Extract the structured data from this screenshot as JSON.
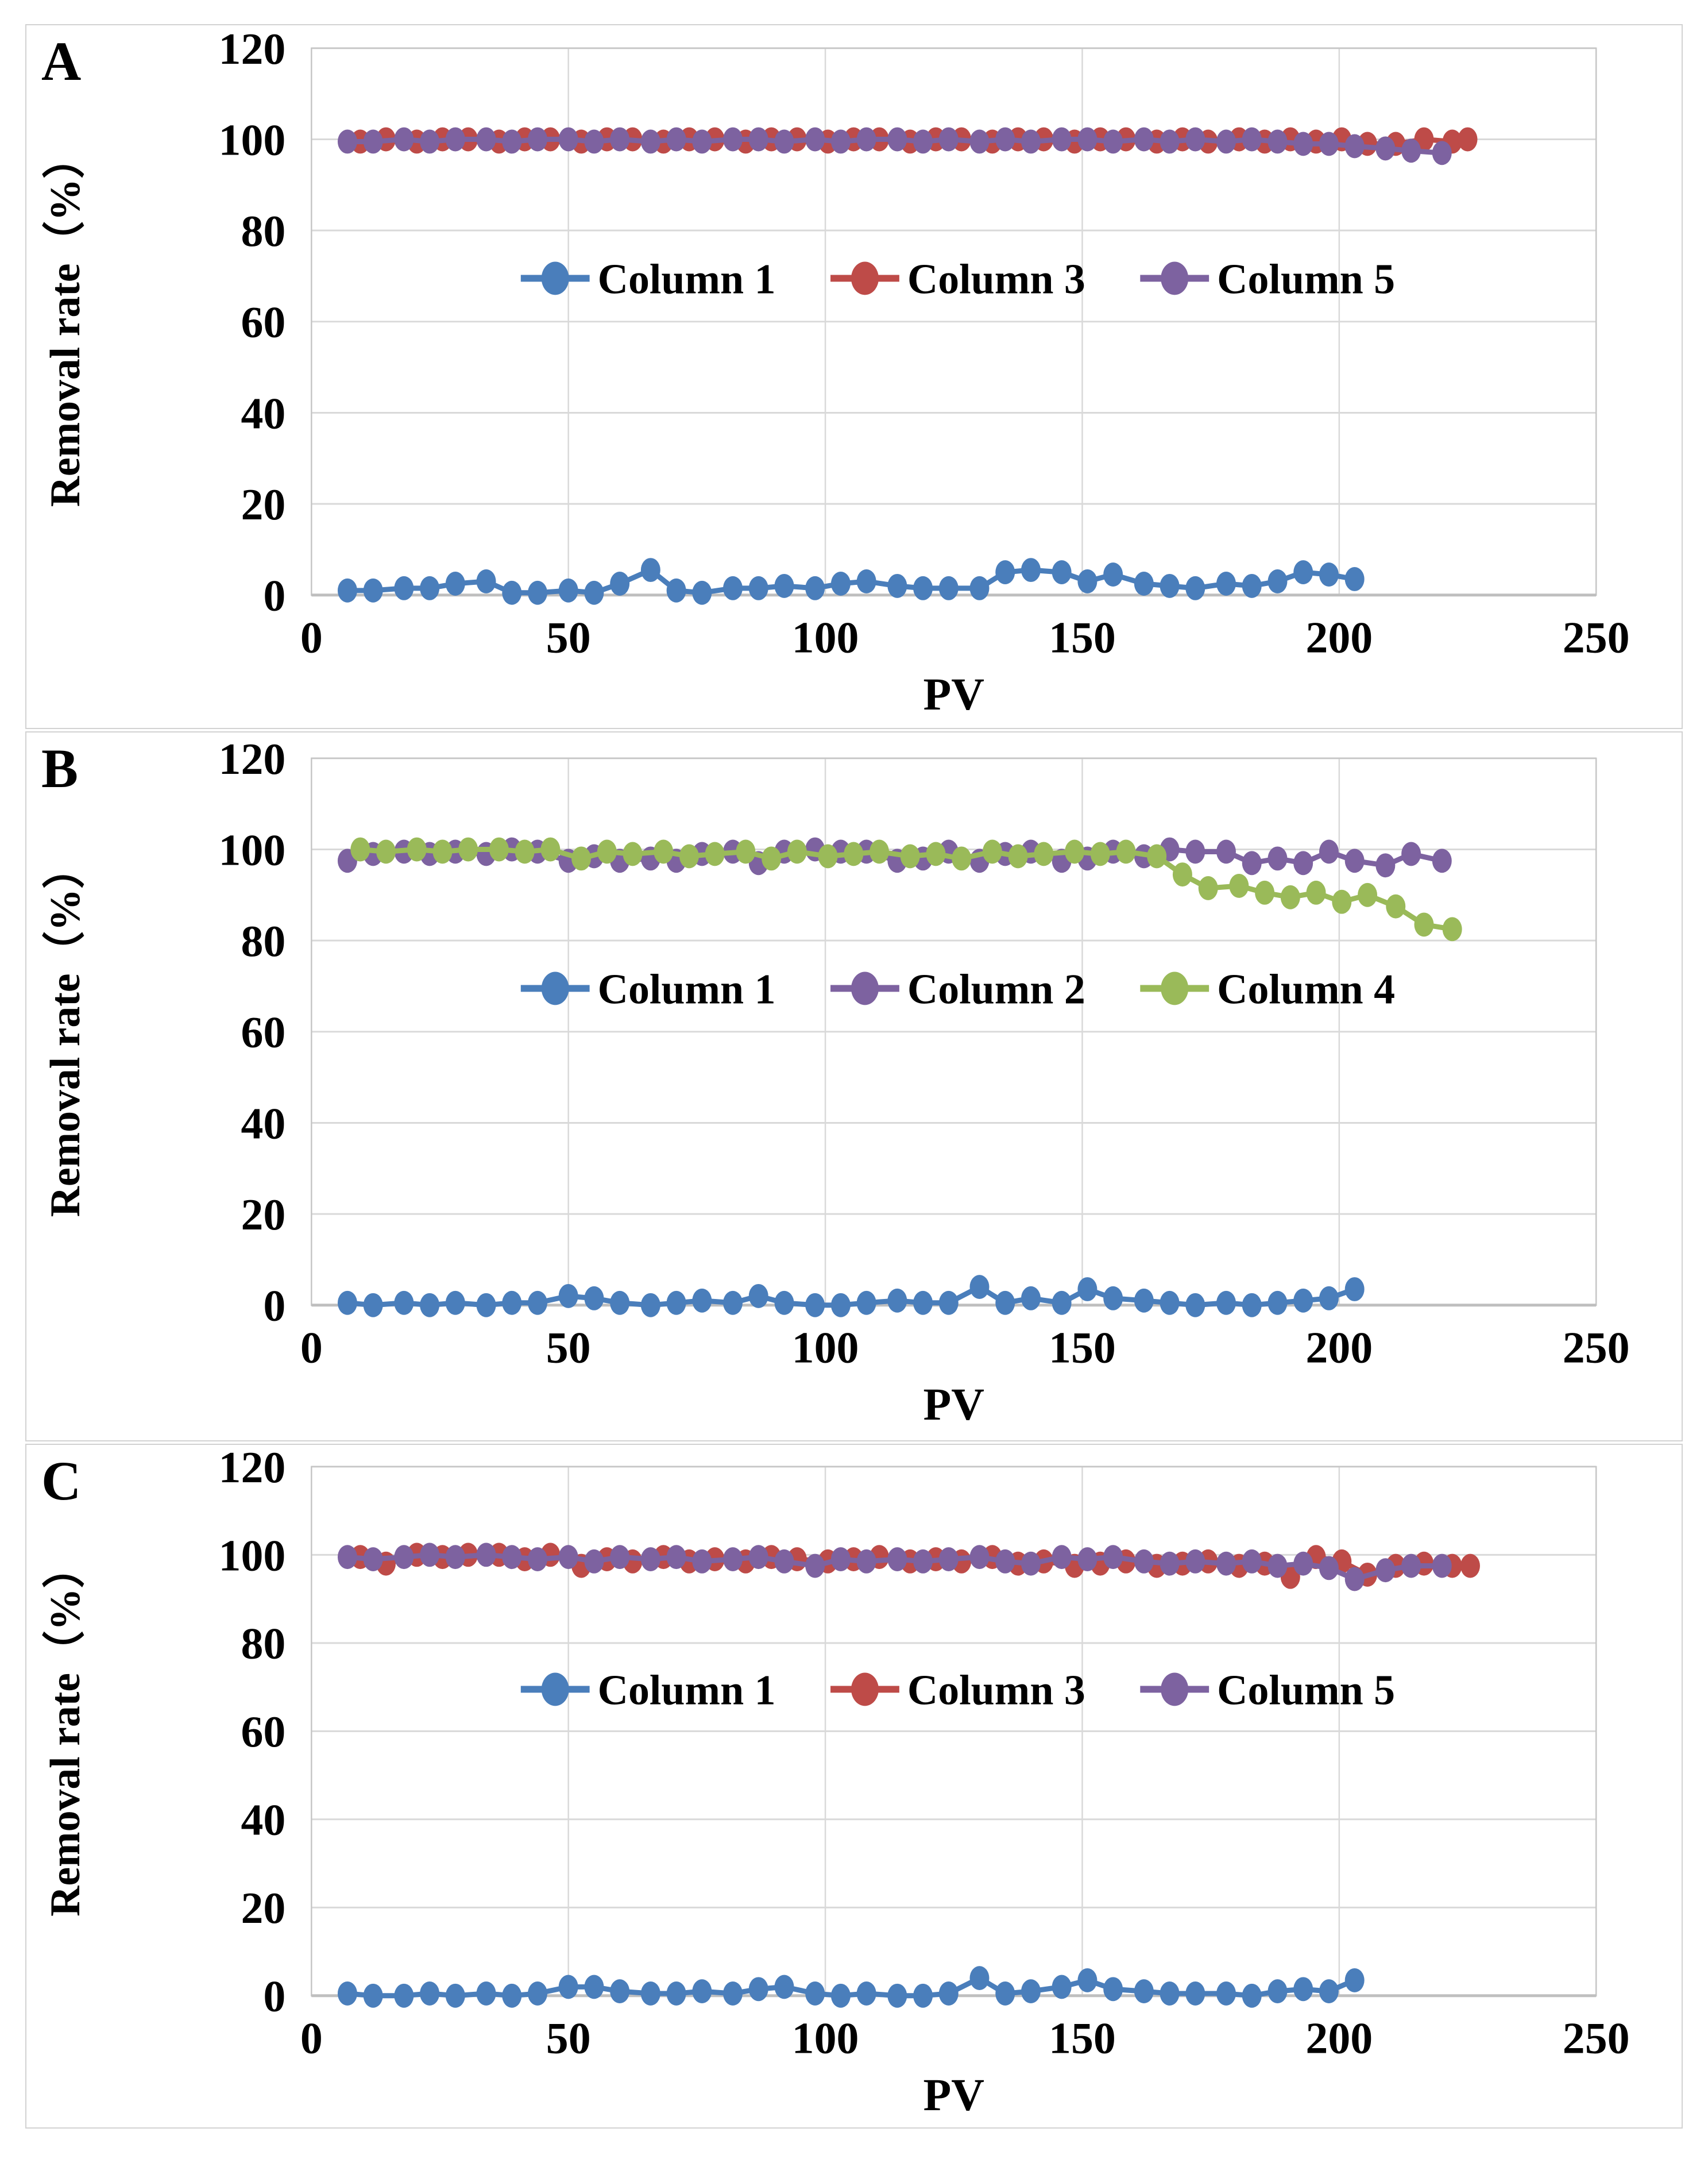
{
  "figure": {
    "background": "#ffffff",
    "panel_border_color": "#d2d2d2",
    "grid_color": "#d9d9d9",
    "plot_border_color": "#c6c6c6",
    "axis_line_color": "#bfbfbf",
    "text_color": "#000000"
  },
  "chart_data": [
    {
      "type": "line",
      "panel_label": "A",
      "xlabel": "PV",
      "ylabel": "Removal rate（%）",
      "xlim": [
        0,
        250
      ],
      "ylim": [
        0,
        120
      ],
      "x_ticks": [
        0,
        50,
        100,
        150,
        200,
        250
      ],
      "y_ticks": [
        0,
        20,
        40,
        60,
        80,
        100,
        120
      ],
      "grid": true,
      "legend_position": "inside-center",
      "legend_value_y": 69.5,
      "series": [
        {
          "name": "Column 1",
          "color": "#4a7ebb",
          "x": [
            7,
            12,
            18,
            23,
            28,
            34,
            39,
            44,
            50,
            55,
            60,
            66,
            71,
            76,
            82,
            87,
            92,
            98,
            103,
            108,
            114,
            119,
            124,
            130,
            135,
            140,
            146,
            151,
            156,
            162,
            167,
            172,
            178,
            183,
            188,
            193,
            198,
            203
          ],
          "y": [
            1,
            1,
            1.5,
            1.5,
            2.5,
            3,
            0.5,
            0.5,
            1,
            0.5,
            2.5,
            5.5,
            1,
            0.5,
            1.5,
            1.5,
            2,
            1.5,
            2.5,
            3,
            2,
            1.5,
            1.5,
            1.5,
            5,
            5.5,
            5,
            3,
            4.5,
            2.5,
            2,
            1.5,
            2.5,
            2,
            3,
            5,
            4.5,
            3.5
          ]
        },
        {
          "name": "Column 3",
          "color": "#be4b48",
          "x": [
            9.5,
            14.5,
            20.5,
            25.5,
            30.5,
            36.5,
            41.5,
            46.5,
            52.5,
            57.5,
            62.5,
            68.5,
            73.5,
            78.5,
            84.5,
            89.5,
            94.5,
            100.5,
            105.5,
            110.5,
            116.5,
            121.5,
            126.5,
            132.5,
            137.5,
            142.5,
            148.5,
            153.5,
            158.5,
            164.5,
            169.5,
            174.5,
            180.5,
            185.5,
            190.5,
            195.5,
            200.5,
            205.5,
            211,
            216.5,
            222,
            225
          ],
          "y": [
            99.5,
            100,
            99.5,
            100,
            100,
            99.5,
            100,
            100,
            99.5,
            100,
            100,
            99.5,
            100,
            100,
            99.5,
            100,
            100,
            99.5,
            100,
            100,
            99.5,
            100,
            100,
            99.5,
            100,
            100,
            99.5,
            100,
            100,
            99.5,
            100,
            99.5,
            100,
            99.5,
            100,
            99.5,
            100,
            99,
            99,
            100,
            99.5,
            100
          ]
        },
        {
          "name": "Column 5",
          "color": "#7d62a0",
          "x": [
            7,
            12,
            18,
            23,
            28,
            34,
            39,
            44,
            50,
            55,
            60,
            66,
            71,
            76,
            82,
            87,
            92,
            98,
            103,
            108,
            114,
            119,
            124,
            130,
            135,
            140,
            146,
            151,
            156,
            162,
            167,
            172,
            178,
            183,
            188,
            193,
            198,
            203,
            209,
            214,
            220
          ],
          "y": [
            99.5,
            99.5,
            100,
            99.5,
            100,
            100,
            99.5,
            100,
            100,
            99.5,
            100,
            99.5,
            100,
            99.5,
            100,
            100,
            99.5,
            100,
            99.5,
            100,
            100,
            99.5,
            100,
            99.5,
            100,
            99.5,
            100,
            100,
            99.5,
            100,
            99.5,
            100,
            99.5,
            100,
            99.5,
            99,
            99,
            98.5,
            98,
            97.5,
            97
          ]
        }
      ]
    },
    {
      "type": "line",
      "panel_label": "B",
      "xlabel": "PV",
      "ylabel": "Removal rate（%）",
      "xlim": [
        0,
        250
      ],
      "ylim": [
        0,
        120
      ],
      "x_ticks": [
        0,
        50,
        100,
        150,
        200,
        250
      ],
      "y_ticks": [
        0,
        20,
        40,
        60,
        80,
        100,
        120
      ],
      "grid": true,
      "legend_position": "inside-center",
      "legend_value_y": 69.5,
      "series": [
        {
          "name": "Column 1",
          "color": "#4a7ebb",
          "x": [
            7,
            12,
            18,
            23,
            28,
            34,
            39,
            44,
            50,
            55,
            60,
            66,
            71,
            76,
            82,
            87,
            92,
            98,
            103,
            108,
            114,
            119,
            124,
            130,
            135,
            140,
            146,
            151,
            156,
            162,
            167,
            172,
            178,
            183,
            188,
            193,
            198,
            203
          ],
          "y": [
            0.5,
            0,
            0.5,
            0,
            0.5,
            0,
            0.5,
            0.5,
            2,
            1.5,
            0.5,
            0,
            0.5,
            1,
            0.5,
            2,
            0.5,
            0,
            0,
            0.5,
            1,
            0.5,
            0.5,
            4,
            0.5,
            1.5,
            0.5,
            3.5,
            1.5,
            1,
            0.5,
            0,
            0.5,
            0,
            0.5,
            1,
            1.5,
            3.5
          ]
        },
        {
          "name": "Column 2",
          "color": "#7d62a0",
          "x": [
            7,
            12,
            18,
            23,
            28,
            34,
            39,
            44,
            50,
            55,
            60,
            66,
            71,
            76,
            82,
            87,
            92,
            98,
            103,
            108,
            114,
            119,
            124,
            130,
            135,
            140,
            146,
            151,
            156,
            162,
            167,
            172,
            178,
            183,
            188,
            193,
            198,
            203,
            209,
            214,
            220
          ],
          "y": [
            97.5,
            99,
            99.5,
            99,
            99.5,
            99,
            100,
            99.5,
            97.5,
            98.5,
            97.5,
            98,
            97.5,
            99,
            99.5,
            97,
            99.5,
            100,
            99.5,
            99.5,
            97.5,
            98,
            99.5,
            97.5,
            99,
            99.5,
            97.5,
            98,
            99.5,
            98.5,
            100,
            99.5,
            99.5,
            97,
            98,
            97,
            99.5,
            97.5,
            96.5,
            99,
            97.5
          ]
        },
        {
          "name": "Column 4",
          "color": "#9aba59",
          "x": [
            9.5,
            14.5,
            20.5,
            25.5,
            30.5,
            36.5,
            41.5,
            46.5,
            52.5,
            57.5,
            62.5,
            68.5,
            73.5,
            78.5,
            84.5,
            89.5,
            94.5,
            100.5,
            105.5,
            110.5,
            116.5,
            121.5,
            126.5,
            132.5,
            137.5,
            142.5,
            148.5,
            153.5,
            158.5,
            164.5,
            169.5,
            174.5,
            180.5,
            185.5,
            190.5,
            195.5,
            200.5,
            205.5,
            211,
            216.5,
            222
          ],
          "y": [
            100,
            99.5,
            100,
            99.5,
            100,
            100,
            99.5,
            100,
            98,
            99.5,
            99,
            99.5,
            98.5,
            99,
            99.5,
            98,
            99.5,
            98.5,
            99,
            99.5,
            98.5,
            99,
            98,
            99.5,
            98.5,
            99,
            99.5,
            99,
            99.5,
            98.5,
            94.5,
            91.5,
            92,
            90.5,
            89.5,
            90.5,
            88.5,
            90,
            87.5,
            83.5,
            82.5
          ]
        }
      ]
    },
    {
      "type": "line",
      "panel_label": "C",
      "xlabel": "PV",
      "ylabel": "Removal rate（%）",
      "xlim": [
        0,
        250
      ],
      "ylim": [
        0,
        120
      ],
      "x_ticks": [
        0,
        50,
        100,
        150,
        200,
        250
      ],
      "y_ticks": [
        0,
        20,
        40,
        60,
        80,
        100,
        120
      ],
      "grid": true,
      "legend_position": "inside-center",
      "legend_value_y": 69.5,
      "series": [
        {
          "name": "Column 1",
          "color": "#4a7ebb",
          "x": [
            7,
            12,
            18,
            23,
            28,
            34,
            39,
            44,
            50,
            55,
            60,
            66,
            71,
            76,
            82,
            87,
            92,
            98,
            103,
            108,
            114,
            119,
            124,
            130,
            135,
            140,
            146,
            151,
            156,
            162,
            167,
            172,
            178,
            183,
            188,
            193,
            198,
            203
          ],
          "y": [
            0.5,
            0,
            0,
            0.5,
            0,
            0.5,
            0,
            0.5,
            2,
            2,
            1,
            0.5,
            0.5,
            1,
            0.5,
            1.5,
            2,
            0.5,
            0,
            0.5,
            0,
            0,
            0.5,
            4,
            0.5,
            1,
            2,
            3.5,
            1.5,
            1,
            0.5,
            0.5,
            0.5,
            0,
            1,
            1.5,
            1,
            3.5
          ]
        },
        {
          "name": "Column 3",
          "color": "#be4b48",
          "x": [
            9.5,
            14.5,
            20.5,
            25.5,
            30.5,
            36.5,
            41.5,
            46.5,
            52.5,
            57.5,
            62.5,
            68.5,
            73.5,
            78.5,
            84.5,
            89.5,
            94.5,
            100.5,
            105.5,
            110.5,
            116.5,
            121.5,
            126.5,
            132.5,
            137.5,
            142.5,
            148.5,
            153.5,
            158.5,
            164.5,
            169.5,
            174.5,
            180.5,
            185.5,
            190.5,
            195.5,
            200.5,
            205.5,
            211,
            216.5,
            222,
            225.5
          ],
          "y": [
            99.5,
            98,
            100,
            99.5,
            100,
            100,
            99,
            100,
            97.5,
            99,
            98.5,
            99.5,
            98.5,
            99,
            98.5,
            99.5,
            99,
            98.5,
            99,
            99.5,
            98.5,
            99,
            98.5,
            99.5,
            98,
            98.5,
            97.5,
            98,
            98.5,
            97.5,
            98,
            98.5,
            97.5,
            98,
            95,
            99.5,
            98.5,
            95.5,
            97.5,
            98,
            97.5,
            97.5
          ]
        },
        {
          "name": "Column 5",
          "color": "#7d62a0",
          "x": [
            7,
            12,
            18,
            23,
            28,
            34,
            39,
            44,
            50,
            55,
            60,
            66,
            71,
            76,
            82,
            87,
            92,
            98,
            103,
            108,
            114,
            119,
            124,
            130,
            135,
            140,
            146,
            151,
            156,
            162,
            167,
            172,
            178,
            183,
            188,
            193,
            198,
            203,
            209,
            214,
            220
          ],
          "y": [
            99.5,
            99,
            99.5,
            100,
            99.5,
            100,
            99.5,
            99,
            99.5,
            98.5,
            99.5,
            99,
            99.5,
            98.5,
            99,
            99.5,
            98.5,
            97.5,
            99,
            98.5,
            99,
            98.5,
            99,
            99.5,
            98.5,
            98,
            99.5,
            99,
            99.5,
            98.5,
            98,
            98.5,
            98,
            98.5,
            97.5,
            98,
            97,
            94.5,
            96.5,
            97.5,
            97.5
          ]
        }
      ]
    }
  ]
}
